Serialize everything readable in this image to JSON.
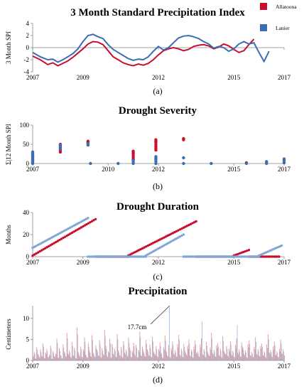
{
  "colors": {
    "allatoona": "#c8102e",
    "lanier": "#3b6db4",
    "lanier_light": "#7fa6d6",
    "allatoona_light": "#e06a6a",
    "purple": "#6b3a8c"
  },
  "legend": {
    "items": [
      {
        "name": "Allatoona",
        "color": "#c8102e"
      },
      {
        "name": "Lanier",
        "color": "#3b6db4"
      }
    ],
    "placement": "top-right"
  },
  "chart_data": [
    {
      "panel": "(a)",
      "type": "line",
      "title": "3 Month Standard Precipitation Index",
      "ylabel": "3 Month SPI",
      "xlabel": "",
      "xlim": [
        2007,
        2017
      ],
      "ylim": [
        -4,
        4
      ],
      "yticks": [
        "4",
        "2",
        "0",
        "-2",
        "-4"
      ],
      "xticks": [
        "2007",
        "2009",
        "2012",
        "2015",
        "2017"
      ],
      "series": [
        {
          "name": "Allatoona",
          "color": "#c8102e",
          "x": [
            2007.0,
            2007.3,
            2007.6,
            2007.8,
            2008.0,
            2008.2,
            2008.4,
            2008.6,
            2008.8,
            2009.0,
            2009.2,
            2009.4,
            2009.6,
            2009.8,
            2010.0,
            2010.2,
            2010.4,
            2010.6,
            2010.8,
            2011.0,
            2011.2,
            2011.4,
            2011.6,
            2011.8,
            2012.0,
            2012.2,
            2012.4,
            2012.6,
            2012.8,
            2013.0,
            2013.2,
            2013.4,
            2013.6,
            2013.8,
            2014.0,
            2014.2,
            2014.4,
            2014.6,
            2014.8,
            2015.0,
            2015.2,
            2015.4,
            2015.6,
            2015.8,
            2016.0,
            2016.2,
            2016.4
          ],
          "values": [
            -1.4,
            -2.0,
            -2.8,
            -2.5,
            -3.0,
            -2.6,
            -2.2,
            -1.6,
            -0.9,
            -0.2,
            0.6,
            1.0,
            0.9,
            0.5,
            -0.5,
            -1.5,
            -2.0,
            -2.5,
            -2.8,
            -3.0,
            -2.7,
            -2.9,
            -2.6,
            -2.0,
            -1.2,
            -0.5,
            -0.2,
            0.0,
            -0.2,
            -0.5,
            -0.3,
            0.2,
            0.4,
            0.5,
            0.3,
            -0.2,
            0.1,
            0.6,
            0.3,
            -0.3,
            -0.8,
            -0.5,
            0.5,
            1.4,
            null,
            null,
            null
          ]
        },
        {
          "name": "Lanier",
          "color": "#3b6db4",
          "x": [
            2007.0,
            2007.3,
            2007.6,
            2007.8,
            2008.0,
            2008.2,
            2008.4,
            2008.6,
            2008.8,
            2009.0,
            2009.2,
            2009.4,
            2009.6,
            2009.8,
            2010.0,
            2010.2,
            2010.4,
            2010.6,
            2010.8,
            2011.0,
            2011.2,
            2011.4,
            2011.6,
            2011.8,
            2012.0,
            2012.2,
            2012.4,
            2012.6,
            2012.8,
            2013.0,
            2013.2,
            2013.4,
            2013.6,
            2013.8,
            2014.0,
            2014.2,
            2014.4,
            2014.6,
            2014.8,
            2015.0,
            2015.2,
            2015.4,
            2015.6,
            2015.8,
            2016.0,
            2016.2,
            2016.4
          ],
          "values": [
            -0.8,
            -1.5,
            -2.0,
            -1.9,
            -2.4,
            -2.0,
            -1.5,
            -1.0,
            -0.2,
            1.0,
            2.0,
            2.2,
            1.8,
            1.5,
            0.5,
            -0.3,
            -0.8,
            -1.3,
            -1.8,
            -2.1,
            -1.9,
            -2.0,
            -1.5,
            -0.6,
            0.2,
            -0.4,
            0.0,
            0.8,
            1.6,
            1.9,
            2.0,
            1.8,
            1.5,
            1.0,
            0.6,
            -0.1,
            0.2,
            0.0,
            -0.6,
            -0.2,
            0.6,
            1.0,
            0.6,
            0.8,
            -0.8,
            -2.3,
            -0.6
          ]
        }
      ]
    },
    {
      "panel": "(b)",
      "type": "scatter",
      "title": "Drought Severity",
      "ylabel": "Σ|12 Month SPI",
      "xlabel": "",
      "xlim": [
        2007,
        2017
      ],
      "ylim": [
        0,
        100
      ],
      "yticks": [
        "100",
        "50",
        "0"
      ],
      "xticks": [
        "2007",
        "2010",
        "2012",
        "2015",
        "2017"
      ],
      "series": [
        {
          "name": "Allatoona",
          "color": "#c8102e",
          "points": [
            [
              2007.0,
              5
            ],
            [
              2007.0,
              10
            ],
            [
              2007.0,
              15
            ],
            [
              2007.0,
              20
            ],
            [
              2008.1,
              30
            ],
            [
              2008.1,
              35
            ],
            [
              2008.1,
              40
            ],
            [
              2008.1,
              45
            ],
            [
              2008.1,
              50
            ],
            [
              2009.2,
              52
            ],
            [
              2009.2,
              55
            ],
            [
              2009.2,
              58
            ],
            [
              2011.0,
              10
            ],
            [
              2011.0,
              15
            ],
            [
              2011.0,
              20
            ],
            [
              2011.0,
              25
            ],
            [
              2011.0,
              28
            ],
            [
              2011.0,
              32
            ],
            [
              2011.9,
              35
            ],
            [
              2011.9,
              40
            ],
            [
              2011.9,
              45
            ],
            [
              2011.9,
              50
            ],
            [
              2011.9,
              55
            ],
            [
              2011.9,
              58
            ],
            [
              2011.9,
              62
            ],
            [
              2013.0,
              62
            ],
            [
              2013.0,
              65
            ],
            [
              2015.5,
              2
            ],
            [
              2016.3,
              1
            ],
            [
              2017.0,
              2
            ]
          ]
        },
        {
          "name": "Lanier",
          "color": "#3b6db4",
          "points": [
            [
              2007.0,
              0
            ],
            [
              2007.0,
              3
            ],
            [
              2007.0,
              8
            ],
            [
              2007.0,
              12
            ],
            [
              2007.0,
              18
            ],
            [
              2007.0,
              22
            ],
            [
              2007.0,
              26
            ],
            [
              2007.0,
              30
            ],
            [
              2008.1,
              38
            ],
            [
              2008.1,
              42
            ],
            [
              2008.1,
              48
            ],
            [
              2009.2,
              48
            ],
            [
              2009.2,
              52
            ],
            [
              2009.3,
              0
            ],
            [
              2010.4,
              0
            ],
            [
              2011.0,
              0
            ],
            [
              2011.0,
              4
            ],
            [
              2011.0,
              8
            ],
            [
              2011.9,
              0
            ],
            [
              2011.9,
              5
            ],
            [
              2011.9,
              10
            ],
            [
              2011.9,
              14
            ],
            [
              2011.9,
              18
            ],
            [
              2013.0,
              0
            ],
            [
              2013.0,
              15
            ],
            [
              2014.1,
              0
            ],
            [
              2015.5,
              0
            ],
            [
              2016.3,
              0
            ],
            [
              2016.3,
              5
            ],
            [
              2017.0,
              3
            ],
            [
              2017.0,
              8
            ],
            [
              2017.0,
              12
            ]
          ]
        }
      ]
    },
    {
      "panel": "(c)",
      "type": "scatter",
      "title": "Drought Duration",
      "ylabel": "Months",
      "xlabel": "",
      "xlim": [
        2007,
        2017
      ],
      "ylim": [
        0,
        40
      ],
      "yticks": [
        "40",
        "20",
        "0"
      ],
      "xticks": [
        "2007",
        "2009",
        "2012",
        "2015",
        "2017"
      ],
      "series": [
        {
          "name": "Allatoona",
          "color": "#c8102e",
          "segments": [
            {
              "x_start": 2007.0,
              "x_end": 2009.5,
              "y_start": 1,
              "y_end": 34
            },
            {
              "x_start": 2009.5,
              "x_end": 2010.8,
              "y_start": 0,
              "y_end": 0
            },
            {
              "x_start": 2010.8,
              "x_end": 2013.5,
              "y_start": 1,
              "y_end": 32
            },
            {
              "x_start": 2013.5,
              "x_end": 2015.0,
              "y_start": 0,
              "y_end": 0
            },
            {
              "x_start": 2015.0,
              "x_end": 2015.6,
              "y_start": 1,
              "y_end": 6
            },
            {
              "x_start": 2015.6,
              "x_end": 2016.8,
              "y_start": 0,
              "y_end": 0
            }
          ]
        },
        {
          "name": "Lanier",
          "color": "#7fa6d6",
          "segments": [
            {
              "x_start": 2007.0,
              "x_end": 2009.2,
              "y_start": 8,
              "y_end": 35
            },
            {
              "x_start": 2009.2,
              "x_end": 2011.5,
              "y_start": 0,
              "y_end": 0
            },
            {
              "x_start": 2011.5,
              "x_end": 2013.0,
              "y_start": 1,
              "y_end": 20
            },
            {
              "x_start": 2013.0,
              "x_end": 2016.0,
              "y_start": 0,
              "y_end": 0
            },
            {
              "x_start": 2016.0,
              "x_end": 2016.9,
              "y_start": 1,
              "y_end": 10
            }
          ]
        }
      ]
    },
    {
      "panel": "(d)",
      "type": "bar",
      "title": "Precipitation",
      "ylabel": "Centimeters",
      "xlabel": "",
      "xlim": [
        2007,
        2017
      ],
      "ylim": [
        0,
        13
      ],
      "yticks": [
        "10",
        "5",
        "0"
      ],
      "xticks": [
        "2007",
        "2009",
        "2012",
        "2015",
        "2017"
      ],
      "annotation": {
        "text": "17.7cm",
        "x": 2012.4,
        "y": 12.5
      },
      "series": [
        {
          "name": "Allatoona",
          "color": "#e06a6a",
          "x_start": 2007.0,
          "x_step": 0.05,
          "values": [
            1.2,
            2.0,
            0.5,
            3.1,
            1.5,
            0.8,
            2.6,
            1.1,
            4.0,
            0.6,
            1.9,
            2.8,
            0.9,
            1.4,
            3.5,
            0.4,
            2.2,
            1.0,
            1.7,
            5.2,
            0.7,
            2.9,
            1.3,
            0.5,
            3.8,
            2.1,
            1.0,
            6.5,
            1.6,
            2.4,
            0.8,
            4.4,
            1.2,
            3.0,
            0.6,
            7.8,
            2.0,
            1.1,
            3.3,
            0.9,
            2.7,
            5.5,
            1.4,
            0.7,
            4.1,
            2.3,
            1.0,
            6.0,
            1.8,
            0.9,
            3.6,
            2.5,
            1.2,
            4.8,
            0.8,
            2.9,
            1.5,
            7.2,
            3.4,
            1.0,
            2.2,
            5.1,
            0.7,
            3.9,
            1.6,
            2.8,
            0.9,
            6.3,
            2.4,
            1.3,
            3.2,
            0.8,
            4.6,
            1.9,
            2.6,
            1.1,
            5.4,
            3.0,
            0.9,
            2.3,
            4.2,
            1.4,
            3.7,
            0.8,
            2.5,
            6.8,
            1.2,
            3.3,
            2.0,
            1.0,
            4.9,
            2.6,
            1.3,
            3.8,
            0.9,
            5.6,
            2.1,
            1.5,
            3.4,
            1.0,
            2.7,
            4.3,
            1.8,
            0.7,
            3.1,
            5.9,
            2.2,
            1.1,
            3.6,
            0.8,
            2.9,
            4.5,
            1.6,
            2.4,
            1.0,
            3.9,
            6.1,
            1.3,
            2.8,
            0.9,
            4.0,
            2.3,
            1.4,
            3.5,
            5.0,
            1.2,
            2.6,
            0.8,
            3.3,
            4.7,
            1.9,
            2.1,
            1.0,
            3.8,
            5.3,
            1.5,
            2.7,
            0.9,
            4.4,
            2.0,
            1.2,
            3.1,
            6.6,
            1.7,
            2.5,
            1.0,
            3.6,
            4.1,
            1.3,
            2.9,
            0.8,
            5.7,
            2.2,
            1.6,
            3.4,
            1.1,
            2.8,
            4.6,
            1.4,
            2.3,
            0.9,
            3.7,
            5.2,
            1.8,
            2.6,
            1.0,
            4.2,
            3.0,
            1.5,
            2.4,
            0.7,
            3.9,
            4.8,
            1.2,
            2.0,
            0.9,
            3.2,
            5.5,
            1.6,
            2.7,
            1.1,
            3.5,
            4.0,
            1.3,
            2.2,
            0.8,
            3.8,
            6.2,
            1.9,
            2.5,
            1.0,
            3.3,
            4.5,
            1.4,
            2.1,
            0.9,
            2.8,
            5.0,
            1.7,
            2.6,
            1.2,
            3.6,
            1.1
          ]
        },
        {
          "name": "Lanier",
          "color": "#7fa6d6",
          "x_start": 2007.025,
          "x_step": 0.05,
          "values": [
            0.8,
            1.6,
            0.4,
            2.5,
            1.2,
            0.6,
            2.0,
            0.9,
            3.2,
            0.5,
            1.5,
            2.2,
            0.7,
            1.1,
            2.8,
            0.3,
            1.8,
            0.8,
            1.4,
            4.2,
            0.6,
            2.3,
            1.0,
            0.4,
            3.0,
            1.7,
            0.8,
            5.2,
            1.3,
            1.9,
            0.6,
            3.5,
            1.0,
            2.4,
            0.5,
            6.2,
            1.6,
            0.9,
            2.6,
            0.7,
            2.2,
            4.4,
            1.1,
            0.6,
            3.3,
            1.8,
            0.8,
            4.8,
            1.4,
            0.7,
            2.9,
            2.0,
            1.0,
            3.8,
            0.6,
            2.3,
            1.2,
            5.8,
            2.7,
            0.8,
            1.8,
            4.1,
            0.6,
            3.1,
            1.3,
            2.2,
            0.7,
            5.0,
            1.9,
            1.0,
            2.6,
            0.6,
            3.7,
            1.5,
            2.1,
            0.9,
            4.3,
            2.4,
            0.7,
            1.8,
            3.4,
            1.1,
            3.0,
            0.6,
            2.0,
            5.4,
            1.0,
            2.6,
            1.6,
            0.8,
            3.9,
            2.1,
            1.0,
            3.0,
            0.7,
            4.5,
            1.7,
            1.2,
            2.7,
            0.8,
            2.2,
            3.4,
            1.4,
            0.6,
            2.5,
            4.7,
            1.8,
            0.9,
            12.6,
            0.6,
            2.3,
            3.6,
            1.3,
            1.9,
            0.8,
            3.1,
            4.9,
            1.0,
            2.2,
            0.7,
            3.2,
            1.8,
            1.1,
            2.8,
            4.0,
            1.0,
            2.1,
            0.6,
            2.6,
            3.8,
            1.5,
            1.7,
            0.8,
            3.0,
            9.2,
            1.2,
            2.2,
            0.7,
            3.5,
            1.6,
            1.0,
            2.5,
            5.3,
            1.4,
            2.0,
            0.8,
            2.9,
            3.3,
            1.0,
            2.3,
            0.6,
            4.6,
            1.8,
            1.3,
            2.7,
            0.9,
            2.2,
            3.7,
            1.1,
            1.8,
            0.7,
            3.0,
            8.4,
            1.4,
            2.1,
            0.8,
            3.4,
            2.4,
            1.2,
            1.9,
            0.6,
            3.1,
            3.8,
            1.0,
            1.6,
            0.7,
            2.6,
            4.4,
            1.3,
            2.2,
            0.9,
            2.8,
            3.2,
            1.0,
            1.8,
            0.6,
            3.0,
            5.0,
            1.5,
            2.0,
            0.8,
            2.6,
            3.6,
            1.1,
            1.7,
            0.7,
            2.2,
            4.0,
            1.4,
            2.1,
            1.0,
            2.9,
            0.9
          ]
        }
      ]
    }
  ]
}
